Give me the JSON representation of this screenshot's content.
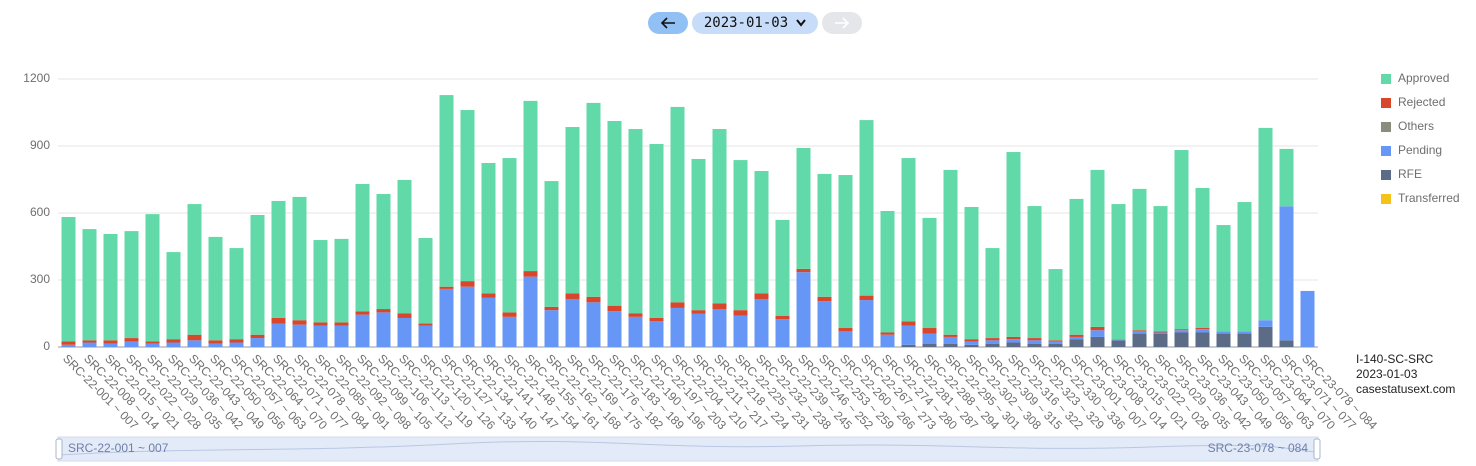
{
  "nav": {
    "date": "2023-01-03"
  },
  "info": {
    "lines": [
      "I-140-SC-SRC",
      "2023-01-03",
      "casestatusext.com"
    ]
  },
  "chart_data": {
    "type": "bar",
    "stacked": true,
    "grid": true,
    "legend": "right",
    "ylim": [
      0,
      1200
    ],
    "yticks": [
      0,
      300,
      600,
      900,
      1200
    ],
    "categories": [
      "SRC-22-001 ~ 007",
      "SRC-22-008 ~ 014",
      "SRC-22-015 ~ 021",
      "SRC-22-022 ~ 028",
      "SRC-22-029 ~ 035",
      "SRC-22-036 ~ 042",
      "SRC-22-043 ~ 049",
      "SRC-22-050 ~ 056",
      "SRC-22-057 ~ 063",
      "SRC-22-064 ~ 070",
      "SRC-22-071 ~ 077",
      "SRC-22-078 ~ 084",
      "SRC-22-085 ~ 091",
      "SRC-22-092 ~ 098",
      "SRC-22-099 ~ 105",
      "SRC-22-106 ~ 112",
      "SRC-22-113 ~ 119",
      "SRC-22-120 ~ 126",
      "SRC-22-127 ~ 133",
      "SRC-22-134 ~ 140",
      "SRC-22-141 ~ 147",
      "SRC-22-148 ~ 154",
      "SRC-22-155 ~ 161",
      "SRC-22-162 ~ 168",
      "SRC-22-169 ~ 175",
      "SRC-22-176 ~ 182",
      "SRC-22-183 ~ 189",
      "SRC-22-190 ~ 196",
      "SRC-22-197 ~ 203",
      "SRC-22-204 ~ 210",
      "SRC-22-211 ~ 217",
      "SRC-22-218 ~ 224",
      "SRC-22-225 ~ 231",
      "SRC-22-232 ~ 238",
      "SRC-22-239 ~ 245",
      "SRC-22-246 ~ 252",
      "SRC-22-253 ~ 259",
      "SRC-22-260 ~ 266",
      "SRC-22-267 ~ 273",
      "SRC-22-274 ~ 280",
      "SRC-22-281 ~ 287",
      "SRC-22-288 ~ 294",
      "SRC-22-295 ~ 301",
      "SRC-22-302 ~ 308",
      "SRC-22-309 ~ 315",
      "SRC-22-316 ~ 322",
      "SRC-22-323 ~ 329",
      "SRC-22-330 ~ 336",
      "SRC-23-001 ~ 007",
      "SRC-23-008 ~ 014",
      "SRC-23-015 ~ 021",
      "SRC-23-022 ~ 028",
      "SRC-23-029 ~ 035",
      "SRC-23-036 ~ 042",
      "SRC-23-043 ~ 049",
      "SRC-23-050 ~ 056",
      "SRC-23-057 ~ 063",
      "SRC-23-064 ~ 070",
      "SRC-23-071 ~ 077",
      "SRC-23-078 ~ 084"
    ],
    "series": [
      {
        "name": "Approved",
        "color": "#62d9a8",
        "values": [
          557,
          498,
          476,
          479,
          570,
          390,
          585,
          463,
          408,
          536,
          524,
          552,
          369,
          374,
          570,
          515,
          598,
          383,
          858,
          766,
          584,
          691,
          762,
          563,
          745,
          868,
          827,
          826,
          779,
          875,
          677,
          781,
          672,
          548,
          429,
          541,
          550,
          685,
          786,
          544,
          731,
          493,
          738,
          592,
          403,
          828,
          591,
          319,
          608,
          703,
          605,
          633,
          561,
          802,
          627,
          476,
          579,
          861,
          257,
          0
        ]
      },
      {
        "name": "Rejected",
        "color": "#d8472c",
        "values": [
          15,
          10,
          15,
          15,
          10,
          15,
          25,
          15,
          15,
          15,
          25,
          20,
          15,
          15,
          15,
          15,
          20,
          10,
          10,
          25,
          20,
          20,
          25,
          15,
          25,
          25,
          25,
          15,
          15,
          25,
          15,
          25,
          25,
          25,
          15,
          15,
          20,
          15,
          20,
          10,
          20,
          25,
          10,
          10,
          10,
          10,
          10,
          5,
          10,
          15,
          0,
          5,
          5,
          5,
          5,
          0,
          0,
          0,
          0,
          0
        ]
      },
      {
        "name": "Others",
        "color": "#8b8c7e",
        "values": [
          0,
          0,
          0,
          0,
          0,
          0,
          0,
          0,
          0,
          0,
          0,
          0,
          0,
          0,
          0,
          0,
          0,
          0,
          0,
          0,
          0,
          0,
          0,
          0,
          0,
          0,
          0,
          0,
          0,
          0,
          0,
          0,
          0,
          0,
          0,
          0,
          0,
          0,
          0,
          0,
          0,
          0,
          0,
          0,
          0,
          0,
          0,
          0,
          0,
          0,
          0,
          0,
          0,
          0,
          0,
          0,
          0,
          0,
          0,
          0
        ]
      },
      {
        "name": "Pending",
        "color": "#6697f6",
        "values": [
          10,
          20,
          15,
          25,
          15,
          20,
          30,
          15,
          20,
          40,
          105,
          100,
          95,
          95,
          145,
          155,
          130,
          95,
          260,
          270,
          220,
          135,
          315,
          165,
          215,
          200,
          160,
          135,
          115,
          175,
          150,
          170,
          140,
          215,
          125,
          335,
          205,
          70,
          210,
          55,
          85,
          45,
          30,
          15,
          15,
          15,
          15,
          10,
          10,
          30,
          5,
          10,
          5,
          10,
          15,
          10,
          10,
          30,
          600,
          251
        ]
      },
      {
        "name": "RFE",
        "color": "#5c6b86",
        "values": [
          0,
          0,
          0,
          0,
          0,
          0,
          0,
          0,
          0,
          0,
          0,
          0,
          0,
          0,
          0,
          0,
          0,
          0,
          0,
          0,
          0,
          0,
          0,
          0,
          0,
          0,
          0,
          0,
          0,
          0,
          0,
          0,
          0,
          0,
          0,
          0,
          0,
          0,
          0,
          0,
          10,
          15,
          15,
          10,
          15,
          20,
          15,
          15,
          35,
          45,
          30,
          60,
          60,
          65,
          65,
          60,
          60,
          90,
          30,
          0
        ]
      },
      {
        "name": "Transferred",
        "color": "#f5c21b",
        "values": [
          0,
          0,
          0,
          0,
          0,
          0,
          0,
          0,
          0,
          0,
          0,
          0,
          0,
          0,
          0,
          0,
          0,
          0,
          0,
          0,
          0,
          0,
          0,
          0,
          0,
          0,
          0,
          0,
          0,
          0,
          0,
          0,
          0,
          0,
          0,
          0,
          0,
          0,
          0,
          0,
          0,
          0,
          0,
          0,
          0,
          0,
          0,
          0,
          0,
          0,
          0,
          0,
          0,
          0,
          0,
          0,
          0,
          0,
          0,
          0
        ]
      }
    ]
  }
}
